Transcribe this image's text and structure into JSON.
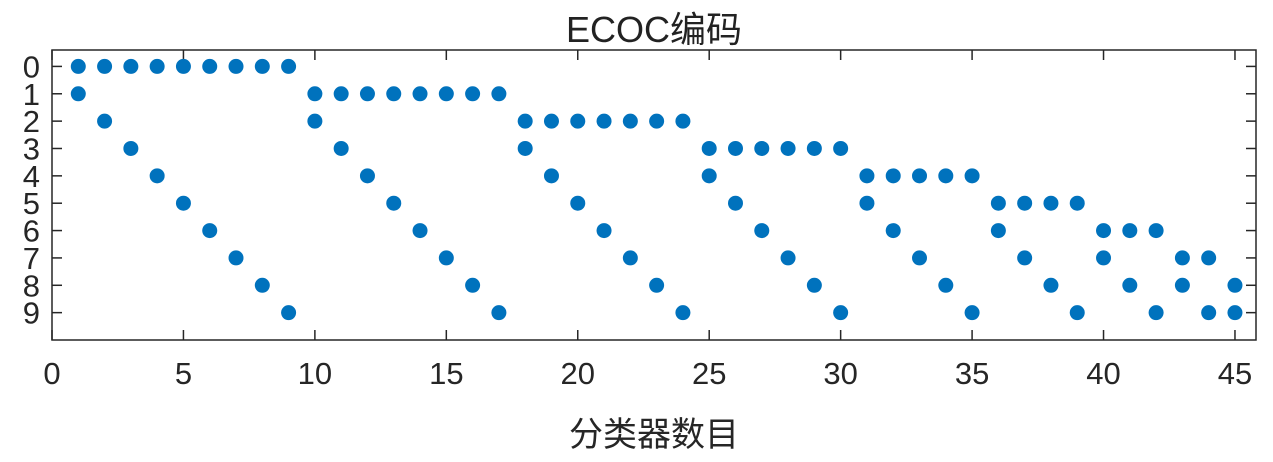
{
  "chart_data": {
    "type": "scatter",
    "title": "ECOC编码",
    "xlabel": "分类器数目",
    "ylabel": "",
    "xlim": [
      0,
      45.8
    ],
    "ylim": [
      -0.6,
      10.0
    ],
    "y_reversed": true,
    "grid": false,
    "legend": "none",
    "x_ticks": [
      0,
      5,
      10,
      15,
      20,
      25,
      30,
      35,
      40,
      45
    ],
    "y_ticks": [
      0,
      1,
      2,
      3,
      4,
      5,
      6,
      7,
      8,
      9
    ],
    "marker_color": "#0072BD",
    "x": [
      1,
      1,
      2,
      2,
      3,
      3,
      4,
      4,
      5,
      5,
      6,
      6,
      7,
      7,
      8,
      8,
      9,
      9,
      10,
      10,
      11,
      11,
      12,
      12,
      13,
      13,
      14,
      14,
      15,
      15,
      16,
      16,
      17,
      17,
      18,
      18,
      19,
      19,
      20,
      20,
      21,
      21,
      22,
      22,
      23,
      23,
      24,
      24,
      25,
      25,
      26,
      26,
      27,
      27,
      28,
      28,
      29,
      29,
      30,
      30,
      31,
      31,
      32,
      32,
      33,
      33,
      34,
      34,
      35,
      35,
      36,
      36,
      37,
      37,
      38,
      38,
      39,
      39,
      40,
      40,
      41,
      41,
      42,
      42,
      43,
      43,
      44,
      44,
      45,
      45
    ],
    "y": [
      0,
      1,
      0,
      2,
      0,
      3,
      0,
      4,
      0,
      5,
      0,
      6,
      0,
      7,
      0,
      8,
      0,
      9,
      1,
      2,
      1,
      3,
      1,
      4,
      1,
      5,
      1,
      6,
      1,
      7,
      1,
      8,
      1,
      9,
      2,
      3,
      2,
      4,
      2,
      5,
      2,
      6,
      2,
      7,
      2,
      8,
      2,
      9,
      3,
      4,
      3,
      5,
      3,
      6,
      3,
      7,
      3,
      8,
      3,
      9,
      4,
      5,
      4,
      6,
      4,
      7,
      4,
      8,
      4,
      9,
      5,
      6,
      5,
      7,
      5,
      8,
      5,
      9,
      6,
      7,
      6,
      8,
      6,
      9,
      7,
      8,
      7,
      9,
      8,
      9
    ]
  }
}
